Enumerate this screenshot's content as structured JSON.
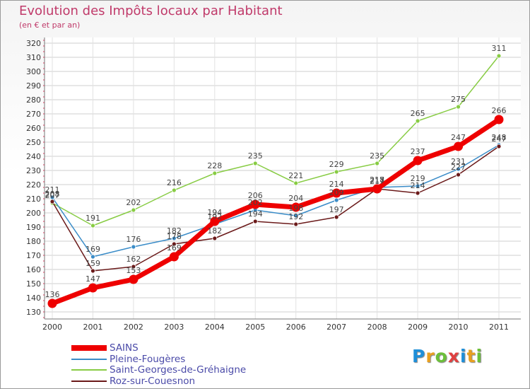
{
  "title": "Evolution des Impôts locaux par Habitant",
  "subtitle": "(en € et par an)",
  "logo_letters": [
    {
      "ch": "P",
      "color": "#1f8fd8"
    },
    {
      "ch": "r",
      "color": "#e8a020"
    },
    {
      "ch": "o",
      "color": "#6cbf3a"
    },
    {
      "ch": "x",
      "color": "#e04040"
    },
    {
      "ch": "i",
      "color": "#1f8fd8"
    },
    {
      "ch": "t",
      "color": "#e8a020"
    },
    {
      "ch": "i",
      "color": "#6cbf3a"
    }
  ],
  "chart_data": {
    "type": "line",
    "title": "Evolution des Impôts locaux par Habitant",
    "subtitle": "(en € et par an)",
    "xlabel": "",
    "ylabel": "",
    "x": [
      "2000",
      "2001",
      "2002",
      "2003",
      "2004",
      "2005",
      "2006",
      "2007",
      "2008",
      "2009",
      "2010",
      "2011"
    ],
    "ylim": [
      130,
      320
    ],
    "yticks": [
      130,
      140,
      150,
      160,
      170,
      180,
      190,
      200,
      210,
      220,
      230,
      240,
      250,
      260,
      270,
      280,
      290,
      300,
      310,
      320
    ],
    "grid": true,
    "legend_position": "bottom-left",
    "series": [
      {
        "name": "Saint-Georges-de-Gréhaigne",
        "color": "#88cc44",
        "values": [
          207,
          191,
          202,
          216,
          228,
          235,
          221,
          229,
          235,
          265,
          275,
          311
        ]
      },
      {
        "name": "Pleine-Fougères",
        "color": "#3a8cc8",
        "values": [
          211,
          169,
          176,
          182,
          192,
          202,
          198,
          209,
          218,
          219,
          231,
          248
        ]
      },
      {
        "name": "Roz-sur-Couesnon",
        "color": "#6b1a1a",
        "values": [
          208,
          159,
          162,
          178,
          182,
          194,
          192,
          197,
          217,
          214,
          227,
          247
        ]
      },
      {
        "name": "SAINS",
        "color": "#ee0000",
        "values": [
          136,
          147,
          153,
          169,
          194,
          206,
          204,
          214,
          217,
          237,
          247,
          266
        ]
      }
    ],
    "legend_order": [
      "SAINS",
      "Pleine-Fougères",
      "Saint-Georges-de-Gréhaigne",
      "Roz-sur-Couesnon"
    ]
  }
}
